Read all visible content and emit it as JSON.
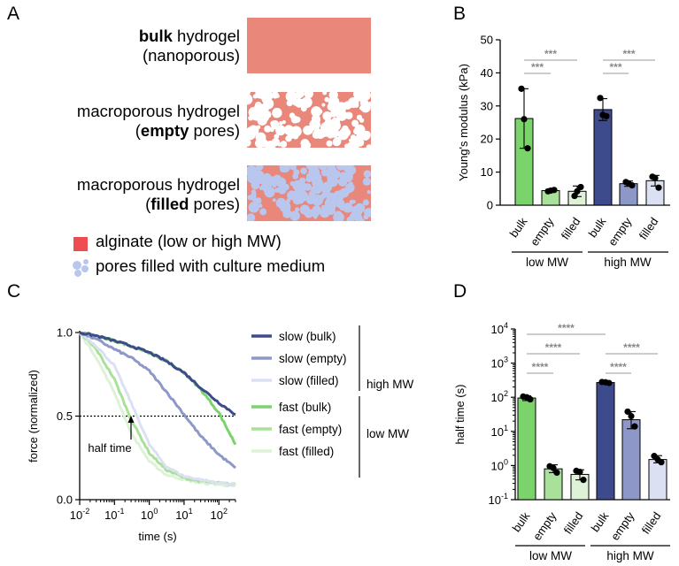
{
  "colors": {
    "alginate": "#E8877A",
    "pore": "#B9C7EE",
    "low_bulk": "#7AD46B",
    "low_empty": "#A9E19A",
    "low_filled": "#DDF2D6",
    "high_bulk": "#3D4A8C",
    "high_empty": "#8E98C8",
    "high_filled": "#DCE0F3",
    "sig": "#999999"
  },
  "panels": {
    "A": "A",
    "B": "B",
    "C": "C",
    "D": "D"
  },
  "panel_a": {
    "row1_bold": "bulk",
    "row1_rest": " hydrogel",
    "row1_line2": "(nanoporous)",
    "row2_line1": "macroporous hydrogel",
    "row2_open": "(",
    "row2_bold": "empty",
    "row2_rest": " pores)",
    "row3_line1": "macroporous hydrogel",
    "row3_open": "(",
    "row3_bold": "filled",
    "row3_rest": " pores)",
    "legend_alginate": "alginate (low or high MW)",
    "legend_pores": "pores filled with culture medium"
  },
  "chart_data": [
    {
      "type": "bar",
      "panel": "B",
      "ylabel": "Young's modulus (kPa)",
      "ylim": [
        0,
        50
      ],
      "yticks": [
        "0",
        "10",
        "20",
        "30",
        "40",
        "50"
      ],
      "categories": [
        "bulk",
        "empty",
        "filled",
        "bulk",
        "empty",
        "filled"
      ],
      "groups": [
        "low  MW",
        "high  MW"
      ],
      "values": [
        26.2,
        4.4,
        4.2,
        28.9,
        6.5,
        7.4
      ],
      "errors": [
        9.0,
        0.4,
        1.6,
        3.3,
        0.8,
        1.6
      ],
      "points": [
        [
          35.2,
          17.2,
          26.0
        ],
        [
          4.2,
          4.6,
          4.4
        ],
        [
          2.8,
          5.5,
          4.2
        ],
        [
          32.4,
          26.9,
          27.3
        ],
        [
          7.0,
          6.0,
          6.6
        ],
        [
          8.6,
          5.3,
          8.2
        ]
      ],
      "significance": [
        {
          "from": 0,
          "to": 2,
          "label": "***"
        },
        {
          "from": 0,
          "to": 1,
          "label": "***"
        },
        {
          "from": 3,
          "to": 5,
          "label": "***"
        },
        {
          "from": 3,
          "to": 4,
          "label": "***"
        }
      ]
    },
    {
      "type": "line",
      "panel": "C",
      "xlabel": "time (s)",
      "ylabel": "force (normalized)",
      "xscale": "log",
      "xlim": [
        0.01,
        300
      ],
      "ylim": [
        0,
        1
      ],
      "xticks": [
        {
          "base": "10",
          "exp": "-2"
        },
        {
          "base": "10",
          "exp": "-1"
        },
        {
          "base": "10",
          "exp": "0"
        },
        {
          "base": "10",
          "exp": "1"
        },
        {
          "base": "10",
          "exp": "2"
        }
      ],
      "yticks": [
        "0.0",
        "0.5",
        "1.0"
      ],
      "reference_line": 0.5,
      "annotation": "half time",
      "group_labels": [
        "high MW",
        "low MW"
      ],
      "series": [
        {
          "name": "slow (bulk)",
          "x": [
            0.01,
            0.03,
            0.1,
            0.3,
            1,
            3,
            10,
            30,
            100,
            300
          ],
          "y": [
            1.0,
            0.98,
            0.95,
            0.92,
            0.88,
            0.83,
            0.76,
            0.67,
            0.58,
            0.51
          ]
        },
        {
          "name": "slow (empty)",
          "x": [
            0.01,
            0.03,
            0.1,
            0.3,
            1,
            3,
            10,
            30,
            100,
            300
          ],
          "y": [
            1.0,
            0.96,
            0.9,
            0.85,
            0.77,
            0.65,
            0.51,
            0.38,
            0.27,
            0.19
          ]
        },
        {
          "name": "slow (filled)",
          "x": [
            0.01,
            0.03,
            0.1,
            0.3,
            1,
            3,
            10,
            30,
            100,
            300
          ],
          "y": [
            1.0,
            0.92,
            0.8,
            0.58,
            0.33,
            0.2,
            0.14,
            0.12,
            0.1,
            0.09
          ]
        },
        {
          "name": "fast (bulk)",
          "x": [
            0.01,
            0.03,
            0.1,
            0.3,
            1,
            3,
            10,
            30,
            100,
            300
          ],
          "y": [
            1.0,
            0.98,
            0.95,
            0.92,
            0.88,
            0.83,
            0.76,
            0.66,
            0.52,
            0.33
          ]
        },
        {
          "name": "fast (empty)",
          "x": [
            0.01,
            0.03,
            0.1,
            0.3,
            1,
            3,
            10,
            30,
            100,
            300
          ],
          "y": [
            1.0,
            0.9,
            0.72,
            0.48,
            0.28,
            0.18,
            0.13,
            0.11,
            0.1,
            0.09
          ]
        },
        {
          "name": "fast (filled)",
          "x": [
            0.01,
            0.03,
            0.1,
            0.3,
            1,
            3,
            10,
            30,
            100,
            300
          ],
          "y": [
            1.0,
            0.85,
            0.64,
            0.4,
            0.23,
            0.15,
            0.12,
            0.1,
            0.09,
            0.08
          ]
        }
      ]
    },
    {
      "type": "bar",
      "panel": "D",
      "ylabel": "half time (s)",
      "yscale": "log",
      "ylim": [
        0.1,
        10000
      ],
      "yticks": [
        {
          "base": "10",
          "exp": "-1"
        },
        {
          "base": "10",
          "exp": "0"
        },
        {
          "base": "10",
          "exp": "1"
        },
        {
          "base": "10",
          "exp": "2"
        },
        {
          "base": "10",
          "exp": "3"
        },
        {
          "base": "10",
          "exp": "4"
        }
      ],
      "categories": [
        "bulk",
        "empty",
        "filled",
        "bulk",
        "empty",
        "filled"
      ],
      "groups": [
        "low MW",
        "high  MW"
      ],
      "values": [
        95,
        0.8,
        0.55,
        270,
        22,
        1.5
      ],
      "err_low": [
        80,
        0.62,
        0.38,
        255,
        12,
        1.2
      ],
      "err_high": [
        110,
        1.05,
        0.75,
        290,
        38,
        1.95
      ],
      "points": [
        [
          105,
          87,
          100
        ],
        [
          0.95,
          0.62,
          0.85
        ],
        [
          0.7,
          0.38,
          0.65
        ],
        [
          280,
          262,
          275
        ],
        [
          38,
          14,
          28
        ],
        [
          1.9,
          1.25,
          1.5
        ]
      ],
      "significance": [
        {
          "from": 0,
          "to": 3,
          "label": "****"
        },
        {
          "from": 0,
          "to": 2,
          "label": "****"
        },
        {
          "from": 0,
          "to": 1,
          "label": "****"
        },
        {
          "from": 3,
          "to": 5,
          "label": "****"
        },
        {
          "from": 3,
          "to": 4,
          "label": "****"
        }
      ]
    }
  ]
}
